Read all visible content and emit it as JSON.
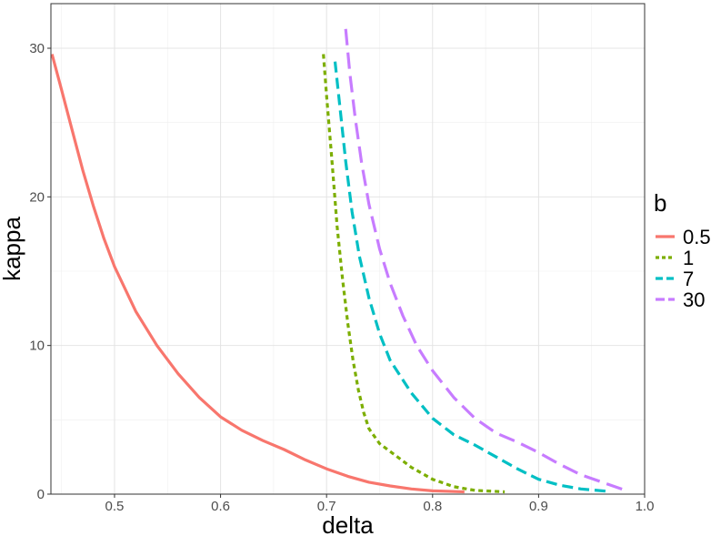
{
  "chart_data": {
    "type": "line",
    "title": "",
    "xlabel": "delta",
    "ylabel": "kappa",
    "xlim": [
      0.44,
      1.0
    ],
    "ylim": [
      0,
      33
    ],
    "x_ticks": [
      0.5,
      0.6,
      0.7,
      0.8,
      0.9,
      1.0
    ],
    "x_tick_labels": [
      "0.5",
      "0.6",
      "0.7",
      "0.8",
      "0.9",
      "1.0"
    ],
    "y_ticks": [
      0,
      10,
      20,
      30
    ],
    "y_tick_labels": [
      "0",
      "10",
      "20",
      "30"
    ],
    "grid": true,
    "legend": {
      "title": "b",
      "position": "right"
    },
    "series": [
      {
        "name": "0.5",
        "color": "#F8766D",
        "dash": "solid",
        "points": [
          [
            0.441,
            29.6
          ],
          [
            0.45,
            27.2
          ],
          [
            0.46,
            24.5
          ],
          [
            0.47,
            21.8
          ],
          [
            0.48,
            19.4
          ],
          [
            0.49,
            17.2
          ],
          [
            0.5,
            15.3
          ],
          [
            0.52,
            12.3
          ],
          [
            0.54,
            10.0
          ],
          [
            0.56,
            8.1
          ],
          [
            0.58,
            6.5
          ],
          [
            0.6,
            5.2
          ],
          [
            0.62,
            4.3
          ],
          [
            0.64,
            3.6
          ],
          [
            0.66,
            3.0
          ],
          [
            0.68,
            2.3
          ],
          [
            0.7,
            1.7
          ],
          [
            0.72,
            1.2
          ],
          [
            0.74,
            0.8
          ],
          [
            0.76,
            0.55
          ],
          [
            0.78,
            0.35
          ],
          [
            0.8,
            0.22
          ],
          [
            0.83,
            0.15
          ]
        ]
      },
      {
        "name": "1",
        "color": "#7CAE00",
        "dash": "dotted",
        "points": [
          [
            0.697,
            29.6
          ],
          [
            0.7,
            26.8
          ],
          [
            0.705,
            22.5
          ],
          [
            0.71,
            18.0
          ],
          [
            0.715,
            14.5
          ],
          [
            0.72,
            11.5
          ],
          [
            0.725,
            9.0
          ],
          [
            0.73,
            7.0
          ],
          [
            0.735,
            5.5
          ],
          [
            0.74,
            4.4
          ],
          [
            0.75,
            3.4
          ],
          [
            0.765,
            2.6
          ],
          [
            0.78,
            1.8
          ],
          [
            0.8,
            1.0
          ],
          [
            0.82,
            0.5
          ],
          [
            0.84,
            0.25
          ],
          [
            0.868,
            0.15
          ]
        ]
      },
      {
        "name": "7",
        "color": "#00BFC4",
        "dash": "dashed",
        "points": [
          [
            0.708,
            29.1
          ],
          [
            0.713,
            25.8
          ],
          [
            0.718,
            22.4
          ],
          [
            0.724,
            19.0
          ],
          [
            0.731,
            16.0
          ],
          [
            0.74,
            13.2
          ],
          [
            0.75,
            10.8
          ],
          [
            0.76,
            9.0
          ],
          [
            0.78,
            6.8
          ],
          [
            0.8,
            5.1
          ],
          [
            0.82,
            4.0
          ],
          [
            0.84,
            3.3
          ],
          [
            0.86,
            2.5
          ],
          [
            0.88,
            1.7
          ],
          [
            0.9,
            1.0
          ],
          [
            0.92,
            0.6
          ],
          [
            0.94,
            0.35
          ],
          [
            0.963,
            0.2
          ]
        ]
      },
      {
        "name": "30",
        "color": "#C77CFF",
        "dash": "longdash",
        "points": [
          [
            0.718,
            31.3
          ],
          [
            0.722,
            28.3
          ],
          [
            0.727,
            25.3
          ],
          [
            0.733,
            22.3
          ],
          [
            0.74,
            19.5
          ],
          [
            0.75,
            16.5
          ],
          [
            0.76,
            14.2
          ],
          [
            0.772,
            12.0
          ],
          [
            0.785,
            10.0
          ],
          [
            0.8,
            8.3
          ],
          [
            0.82,
            6.5
          ],
          [
            0.84,
            5.1
          ],
          [
            0.86,
            4.1
          ],
          [
            0.88,
            3.5
          ],
          [
            0.9,
            2.8
          ],
          [
            0.92,
            2.0
          ],
          [
            0.94,
            1.3
          ],
          [
            0.96,
            0.8
          ],
          [
            0.98,
            0.3
          ]
        ]
      }
    ]
  }
}
